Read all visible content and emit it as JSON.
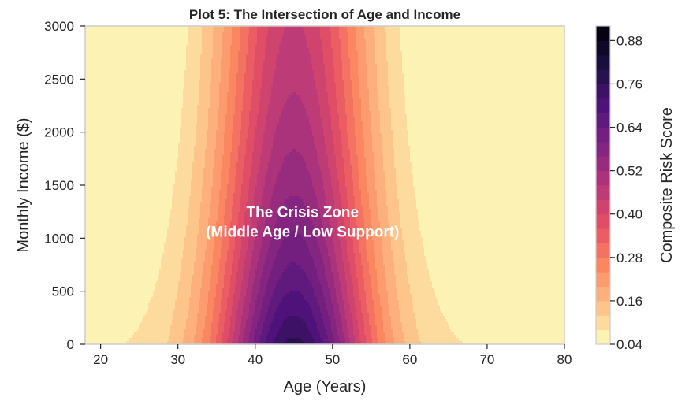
{
  "chart_data": {
    "type": "heatmap",
    "subtype": "filled-contour",
    "title": "Plot 5: The Intersection of Age and Income",
    "xlabel": "Age (Years)",
    "ylabel": "Monthly Income ($)",
    "xlim": [
      18,
      80
    ],
    "ylim": [
      0,
      3000
    ],
    "x_ticks": [
      20,
      30,
      40,
      50,
      60,
      70,
      80
    ],
    "y_ticks": [
      0,
      500,
      1000,
      1500,
      2000,
      2500,
      3000
    ],
    "grid": false,
    "colormap": "magma_r",
    "colorbar": {
      "label": "Composite Risk Score",
      "ticks": [
        "0.04",
        "0.16",
        "0.28",
        "0.40",
        "0.52",
        "0.64",
        "0.76",
        "0.88"
      ],
      "min": 0.04,
      "max": 0.92,
      "levels": [
        0.04,
        0.08,
        0.12,
        0.16,
        0.2,
        0.24,
        0.28,
        0.32,
        0.36,
        0.4,
        0.44,
        0.48,
        0.52,
        0.56,
        0.6,
        0.64,
        0.68,
        0.72,
        0.76,
        0.8,
        0.84,
        0.88,
        0.92
      ]
    },
    "model": {
      "peak_age": 45,
      "age_spread": 7,
      "income_scale": 3000,
      "income_decay": 1.5,
      "age_weight": 0.7,
      "income_weight": 0.5
    },
    "annotation": {
      "line1": "The Crisis Zone",
      "line2": "(Middle Age / Low Support)",
      "x": 50,
      "y": 1200
    }
  }
}
